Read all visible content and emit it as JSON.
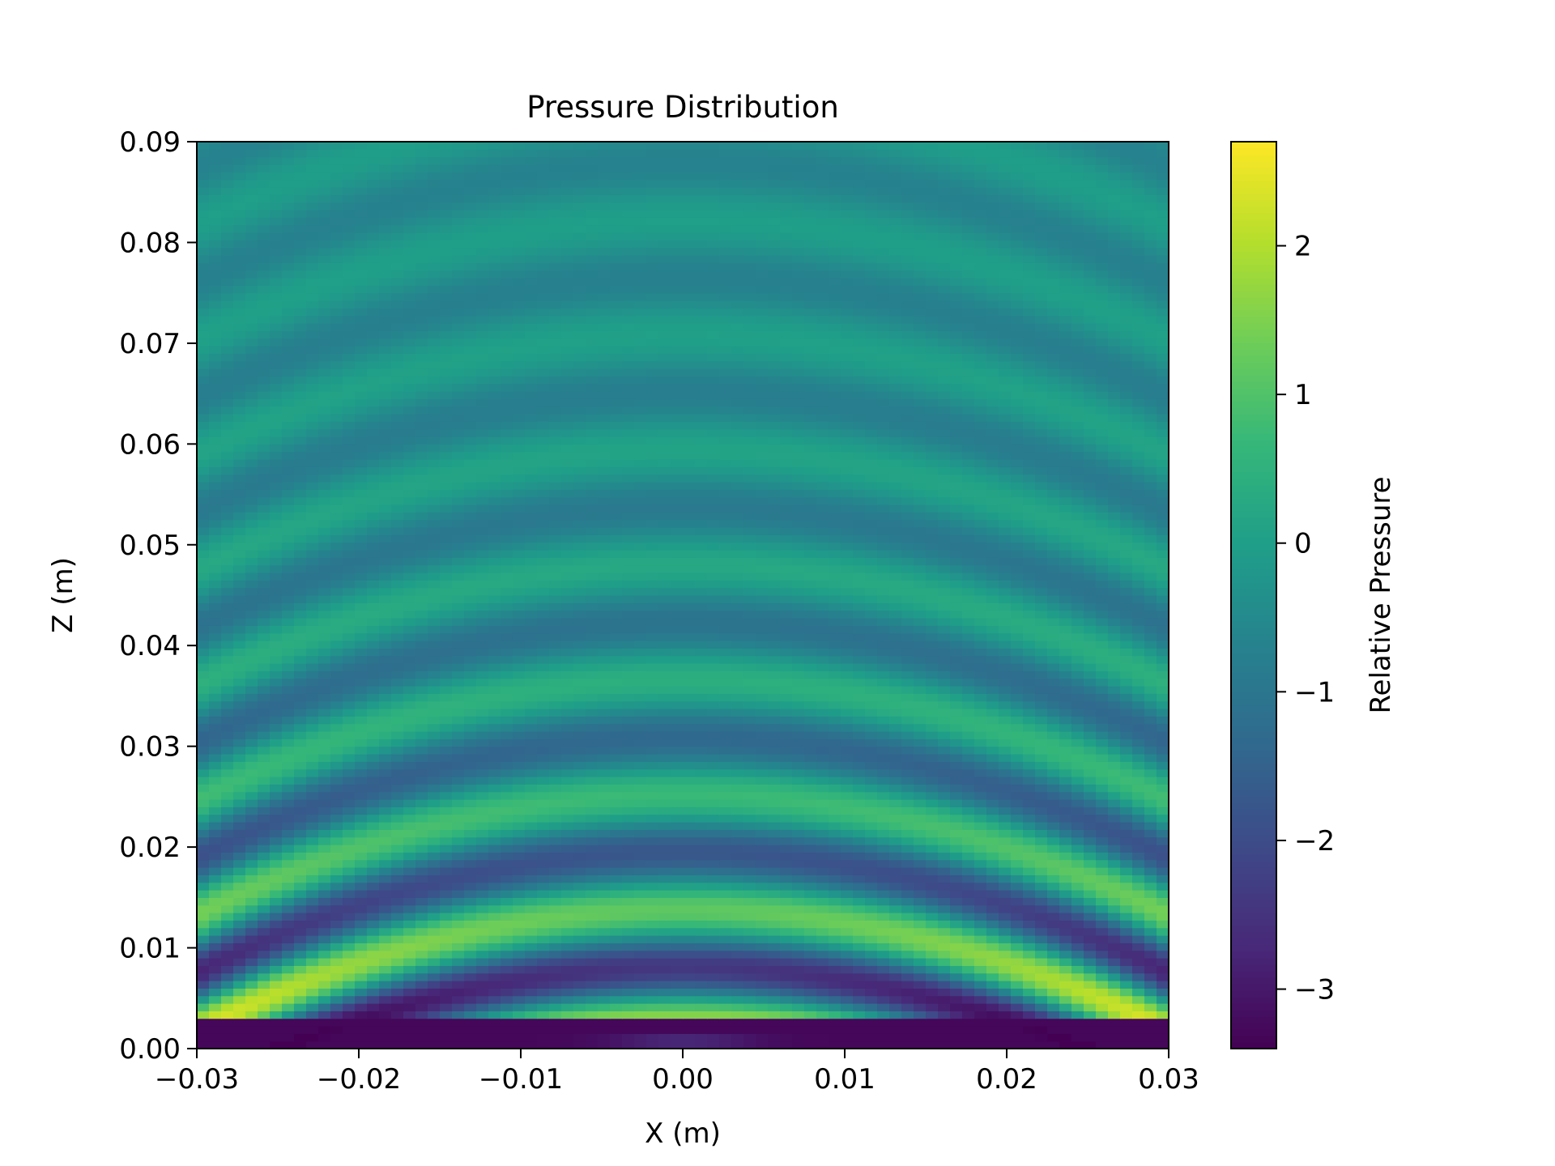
{
  "chart_data": {
    "type": "heatmap",
    "title": "Pressure Distribution",
    "xlabel": "X (m)",
    "ylabel": "Z (m)",
    "colorbar_label": "Relative Pressure",
    "colormap": "viridis",
    "xlim": [
      -0.03,
      0.03
    ],
    "ylim": [
      0.0,
      0.09
    ],
    "clim": [
      -3.4,
      2.7
    ],
    "x_ticks": [
      -0.03,
      -0.02,
      -0.01,
      0.0,
      0.01,
      0.02,
      0.03
    ],
    "x_tick_labels": [
      "−0.03",
      "−0.02",
      "−0.01",
      "0.00",
      "0.01",
      "0.02",
      "0.03"
    ],
    "y_ticks": [
      0.0,
      0.01,
      0.02,
      0.03,
      0.04,
      0.05,
      0.06,
      0.07,
      0.08,
      0.09
    ],
    "y_tick_labels": [
      "0.00",
      "0.01",
      "0.02",
      "0.03",
      "0.04",
      "0.05",
      "0.06",
      "0.07",
      "0.08",
      "0.09"
    ],
    "colorbar_ticks": [
      2,
      1,
      0,
      -1,
      -2,
      -3
    ],
    "colorbar_tick_labels": [
      "2",
      "1",
      "0",
      "−1",
      "−2",
      "−3"
    ],
    "field_description": "Focused wave field: curved pressure bands of wavelength ~0.0114 m along Z, strongest near Z≈0.006 m (≈2.7 at X≈±0.025 m) and a deep trough ≈−3.4 at Z≈0.002 m, decaying with distance toward the ±0.3 range near Z=0.09 m."
  }
}
